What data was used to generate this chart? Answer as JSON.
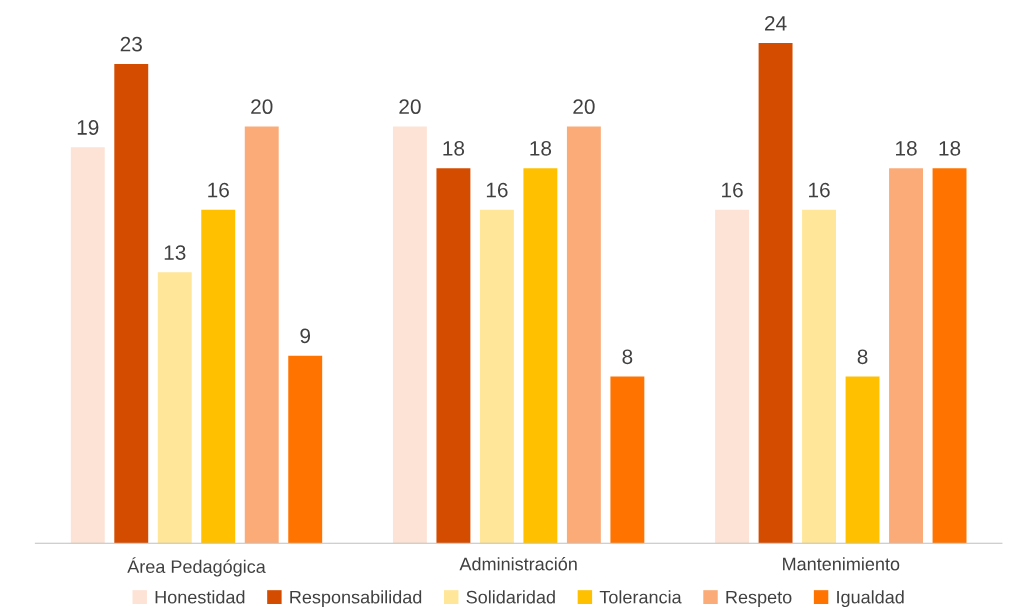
{
  "chart_data": {
    "type": "bar",
    "categories": [
      "Área Pedagógica",
      "Administración",
      "Mantenimiento"
    ],
    "series": [
      {
        "name": "Honestidad",
        "color": "#fde3d5",
        "values": [
          19,
          20,
          16
        ]
      },
      {
        "name": "Responsabilidad",
        "color": "#d44c00",
        "values": [
          23,
          18,
          24
        ]
      },
      {
        "name": "Solidaridad",
        "color": "#ffe699",
        "values": [
          13,
          16,
          16
        ]
      },
      {
        "name": "Tolerancia",
        "color": "#ffc000",
        "values": [
          16,
          18,
          8
        ]
      },
      {
        "name": "Respeto",
        "color": "#fbab78",
        "values": [
          20,
          20,
          18
        ]
      },
      {
        "name": "Igualdad",
        "color": "#ff7300",
        "values": [
          9,
          8,
          18
        ]
      }
    ],
    "data_labels": true,
    "legend": "bottom",
    "grid": false
  }
}
